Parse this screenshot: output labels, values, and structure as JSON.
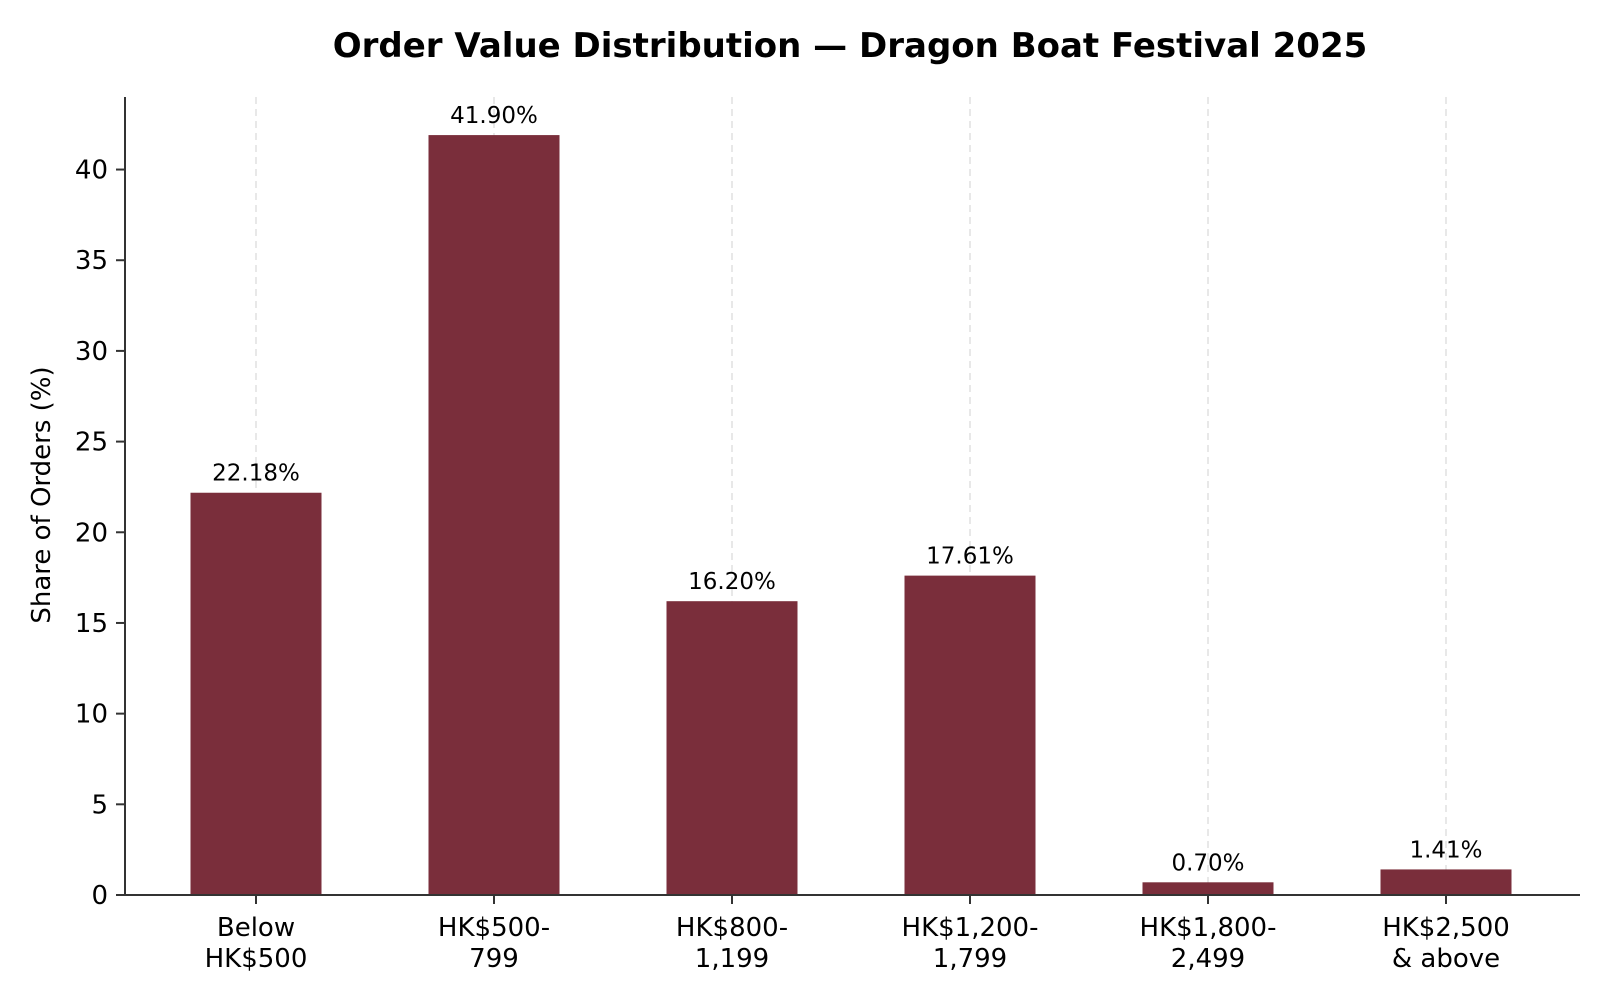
{
  "chart_data": {
    "type": "bar",
    "title": "Order Value Distribution — Dragon Boat Festival 2025",
    "xlabel": "",
    "ylabel": "Share of Orders (%)",
    "categories": [
      [
        "Below",
        "HK$500"
      ],
      [
        "HK$500-",
        "799"
      ],
      [
        "HK$800-",
        "1,199"
      ],
      [
        "HK$1,200-",
        "1,799"
      ],
      [
        "HK$1,800-",
        "2,499"
      ],
      [
        "HK$2,500",
        "& above"
      ]
    ],
    "values": [
      22.18,
      41.9,
      16.2,
      17.61,
      0.7,
      1.41
    ],
    "value_labels": [
      "22.18%",
      "41.90%",
      "16.20%",
      "17.61%",
      "0.70%",
      "1.41%"
    ],
    "ylim": [
      0,
      44
    ],
    "yticks": [
      0,
      5,
      10,
      15,
      20,
      25,
      30,
      35,
      40
    ],
    "grid": "vertical dashed",
    "bar_color": "#7a2e3b",
    "grid_color": "#e0e0e0",
    "axis_color": "#333333"
  }
}
